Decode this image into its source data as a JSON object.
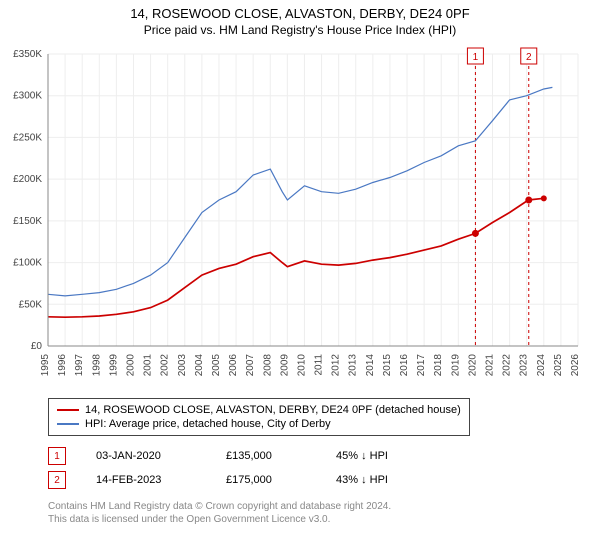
{
  "title": {
    "main": "14, ROSEWOOD CLOSE, ALVASTON, DERBY, DE24 0PF",
    "sub": "Price paid vs. HM Land Registry's House Price Index (HPI)"
  },
  "chart": {
    "type": "line",
    "background_color": "#ffffff",
    "plot_bg_color": "#ffffff",
    "grid_color": "#eeeeee",
    "axis_color": "#888888",
    "tick_font_size": 10,
    "tick_color": "#444444",
    "x": {
      "min": 1995,
      "max": 2026,
      "ticks": [
        1995,
        1996,
        1997,
        1998,
        1999,
        2000,
        2001,
        2002,
        2003,
        2004,
        2005,
        2006,
        2007,
        2008,
        2009,
        2010,
        2011,
        2012,
        2013,
        2014,
        2015,
        2016,
        2017,
        2018,
        2019,
        2020,
        2021,
        2022,
        2023,
        2024,
        2025,
        2026
      ]
    },
    "y": {
      "min": 0,
      "max": 350000,
      "ticks": [
        0,
        50000,
        100000,
        150000,
        200000,
        250000,
        300000,
        350000
      ],
      "tick_labels": [
        "£0",
        "£50K",
        "£100K",
        "£150K",
        "£200K",
        "£250K",
        "£300K",
        "£350K"
      ]
    },
    "series": [
      {
        "name": "property",
        "label": "14, ROSEWOOD CLOSE, ALVASTON, DERBY, DE24 0PF (detached house)",
        "color": "#cc0000",
        "width": 1.7,
        "data": [
          [
            1995,
            35000
          ],
          [
            1996,
            34500
          ],
          [
            1997,
            35000
          ],
          [
            1998,
            36000
          ],
          [
            1999,
            38000
          ],
          [
            2000,
            41000
          ],
          [
            2001,
            46000
          ],
          [
            2002,
            55000
          ],
          [
            2003,
            70000
          ],
          [
            2004,
            85000
          ],
          [
            2005,
            93000
          ],
          [
            2006,
            98000
          ],
          [
            2007,
            107000
          ],
          [
            2008,
            112000
          ],
          [
            2008.7,
            100000
          ],
          [
            2009,
            95000
          ],
          [
            2010,
            102000
          ],
          [
            2011,
            98000
          ],
          [
            2012,
            97000
          ],
          [
            2013,
            99000
          ],
          [
            2014,
            103000
          ],
          [
            2015,
            106000
          ],
          [
            2016,
            110000
          ],
          [
            2017,
            115000
          ],
          [
            2018,
            120000
          ],
          [
            2019,
            128000
          ],
          [
            2020,
            135000
          ],
          [
            2021,
            148000
          ],
          [
            2022,
            160000
          ],
          [
            2023.1,
            175000
          ],
          [
            2024,
            177000
          ]
        ],
        "end_marker": {
          "x": 2024,
          "y": 177000,
          "radius": 3
        }
      },
      {
        "name": "hpi",
        "label": "HPI: Average price, detached house, City of Derby",
        "color": "#4a78c3",
        "width": 1.2,
        "data": [
          [
            1995,
            62000
          ],
          [
            1996,
            60000
          ],
          [
            1997,
            62000
          ],
          [
            1998,
            64000
          ],
          [
            1999,
            68000
          ],
          [
            2000,
            75000
          ],
          [
            2001,
            85000
          ],
          [
            2002,
            100000
          ],
          [
            2003,
            130000
          ],
          [
            2004,
            160000
          ],
          [
            2005,
            175000
          ],
          [
            2006,
            185000
          ],
          [
            2007,
            205000
          ],
          [
            2008,
            212000
          ],
          [
            2008.7,
            185000
          ],
          [
            2009,
            175000
          ],
          [
            2010,
            192000
          ],
          [
            2011,
            185000
          ],
          [
            2012,
            183000
          ],
          [
            2013,
            188000
          ],
          [
            2014,
            196000
          ],
          [
            2015,
            202000
          ],
          [
            2016,
            210000
          ],
          [
            2017,
            220000
          ],
          [
            2018,
            228000
          ],
          [
            2019,
            240000
          ],
          [
            2020,
            246000
          ],
          [
            2021,
            270000
          ],
          [
            2022,
            295000
          ],
          [
            2023,
            300000
          ],
          [
            2024,
            308000
          ],
          [
            2024.5,
            310000
          ]
        ]
      }
    ],
    "markers": [
      {
        "id": "1",
        "x": 2020.0,
        "color": "#cc0000"
      },
      {
        "id": "2",
        "x": 2023.12,
        "color": "#cc0000"
      }
    ],
    "sale_points": [
      {
        "x": 2020.0,
        "y": 135000,
        "color": "#cc0000"
      },
      {
        "x": 2023.12,
        "y": 175000,
        "color": "#cc0000"
      }
    ]
  },
  "legend": {
    "items": [
      {
        "color": "#cc0000",
        "label": "14, ROSEWOOD CLOSE, ALVASTON, DERBY, DE24 0PF (detached house)"
      },
      {
        "color": "#4a78c3",
        "label": "HPI: Average price, detached house, City of Derby"
      }
    ]
  },
  "sales": [
    {
      "id": "1",
      "color": "#cc0000",
      "date": "03-JAN-2020",
      "price": "£135,000",
      "pct": "45%",
      "arrow": "↓",
      "ref": "HPI"
    },
    {
      "id": "2",
      "color": "#cc0000",
      "date": "14-FEB-2023",
      "price": "£175,000",
      "pct": "43%",
      "arrow": "↓",
      "ref": "HPI"
    }
  ],
  "footnote": {
    "line1": "Contains HM Land Registry data © Crown copyright and database right 2024.",
    "line2": "This data is licensed under the Open Government Licence v3.0."
  }
}
